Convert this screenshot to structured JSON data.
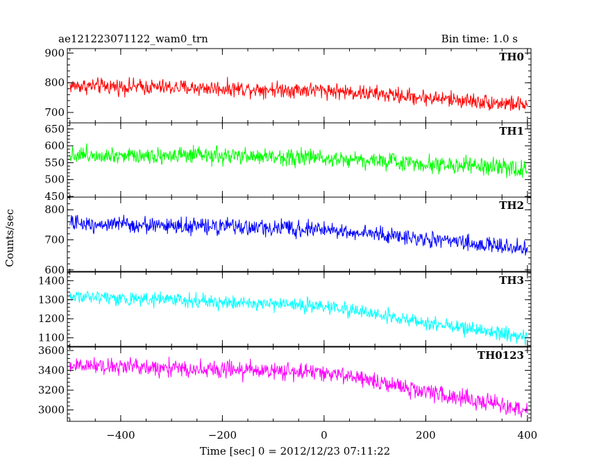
{
  "header": {
    "left_title": "ae121223071122_wam0_trn",
    "right_title": "Bin time: 1.0 s"
  },
  "chart_data": {
    "type": "line",
    "xlabel": "Time [sec] 0 = 2012/12/23 07:11:22",
    "ylabel": "Counts/sec",
    "xlim": [
      -505,
      407
    ],
    "x_ticks": [
      -400,
      -200,
      0,
      200,
      400
    ],
    "x_step_sec": 1.0,
    "panels": [
      {
        "name": "TH0",
        "color": "#ff0000",
        "ylim": [
          665,
          915
        ],
        "y_ticks": [
          700,
          800,
          900
        ],
        "trend": [
          {
            "x": -500,
            "y": 790
          },
          {
            "x": 0,
            "y": 775
          },
          {
            "x": 400,
            "y": 725
          }
        ],
        "noise_amplitude": 40
      },
      {
        "name": "TH1",
        "color": "#00ff00",
        "ylim": [
          448,
          668
        ],
        "y_ticks": [
          450,
          500,
          550,
          600,
          650
        ],
        "trend": [
          {
            "x": -500,
            "y": 575
          },
          {
            "x": 0,
            "y": 565
          },
          {
            "x": 400,
            "y": 530
          }
        ],
        "noise_amplitude": 38
      },
      {
        "name": "TH2",
        "color": "#0000ff",
        "ylim": [
          595,
          842
        ],
        "y_ticks": [
          600,
          700,
          800
        ],
        "trend": [
          {
            "x": -500,
            "y": 755
          },
          {
            "x": 0,
            "y": 735
          },
          {
            "x": 400,
            "y": 670
          }
        ],
        "noise_amplitude": 40
      },
      {
        "name": "TH3",
        "color": "#00ffff",
        "ylim": [
          1055,
          1445
        ],
        "y_ticks": [
          1100,
          1200,
          1300,
          1400
        ],
        "trend": [
          {
            "x": -500,
            "y": 1320
          },
          {
            "x": 0,
            "y": 1265
          },
          {
            "x": 400,
            "y": 1100
          }
        ],
        "noise_amplitude": 55
      },
      {
        "name": "TH0123",
        "color": "#ff00ff",
        "ylim": [
          2885,
          3635
        ],
        "y_ticks": [
          3000,
          3200,
          3400,
          3600
        ],
        "trend": [
          {
            "x": -500,
            "y": 3450
          },
          {
            "x": 0,
            "y": 3380
          },
          {
            "x": 400,
            "y": 2990
          }
        ],
        "noise_amplitude": 130
      }
    ]
  }
}
